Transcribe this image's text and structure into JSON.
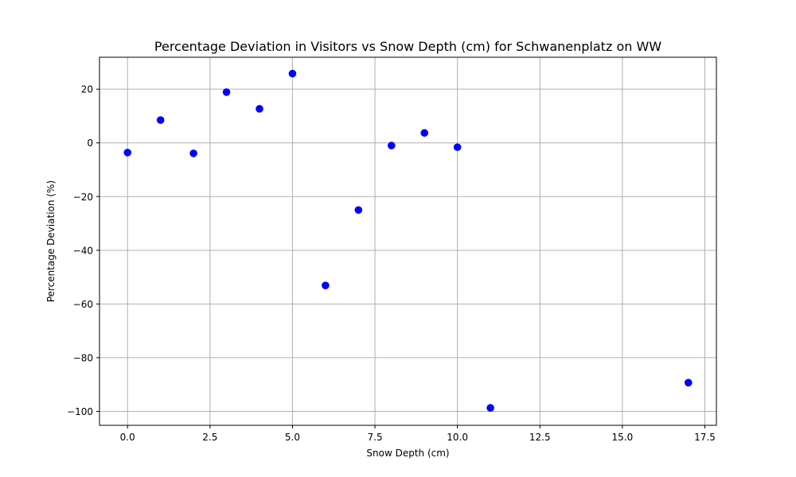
{
  "chart_data": {
    "type": "scatter",
    "title": "Percentage Deviation in Visitors vs Snow Depth (cm) for Schwanenplatz on WW",
    "xlabel": "Snow Depth (cm)",
    "ylabel": "Percentage Deviation (%)",
    "xlim": [
      -0.85,
      17.85
    ],
    "ylim": [
      -105.2,
      31.9
    ],
    "xticks": [
      0.0,
      2.5,
      5.0,
      7.5,
      10.0,
      12.5,
      15.0,
      17.5
    ],
    "xtick_labels": [
      "0.0",
      "2.5",
      "5.0",
      "7.5",
      "10.0",
      "12.5",
      "15.0",
      "17.5"
    ],
    "yticks": [
      20,
      0,
      -20,
      -40,
      -60,
      -80,
      -100
    ],
    "ytick_labels": [
      "20",
      "0",
      "−20",
      "−40",
      "−60",
      "−80",
      "−100"
    ],
    "grid": true,
    "marker_color": "#0000ff",
    "points": [
      {
        "x": 0,
        "y": -3.6
      },
      {
        "x": 1,
        "y": 8.5
      },
      {
        "x": 2,
        "y": -3.9
      },
      {
        "x": 3,
        "y": 18.9
      },
      {
        "x": 4,
        "y": 12.7
      },
      {
        "x": 5,
        "y": 25.8
      },
      {
        "x": 6,
        "y": -53.1
      },
      {
        "x": 7,
        "y": -25.0
      },
      {
        "x": 8,
        "y": -1.0
      },
      {
        "x": 9,
        "y": 3.7
      },
      {
        "x": 10,
        "y": -1.6
      },
      {
        "x": 11,
        "y": -98.7
      },
      {
        "x": 17,
        "y": -89.3
      }
    ]
  }
}
